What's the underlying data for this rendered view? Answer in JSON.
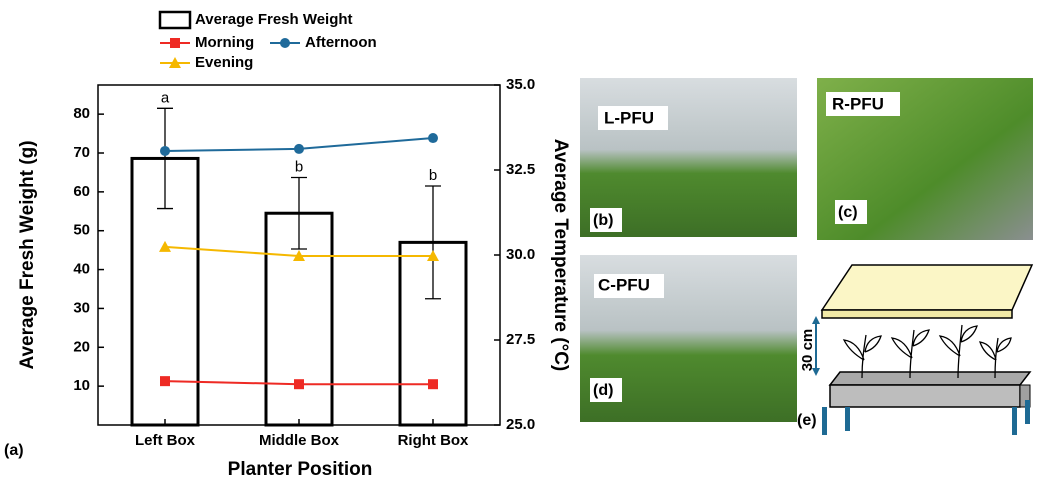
{
  "chart_data": {
    "type": "bar",
    "x_label": "Planter Position",
    "y_label": "Average Fresh Weight (g)",
    "y2_label": "Average Temperature (°C)",
    "panel_label": "(a)",
    "categories": [
      "Left Box",
      "Middle Box",
      "Right Box"
    ],
    "series": [
      {
        "name": "Average Fresh Weight",
        "type": "bar",
        "color": "#000000",
        "values": [
          68.6,
          54.5,
          47.0
        ],
        "errors": [
          12.9,
          9.2,
          14.5
        ],
        "annotations": [
          "a",
          "b",
          "b"
        ]
      },
      {
        "name": "Morning",
        "type": "line",
        "marker": "square",
        "color": "#ee2a24",
        "axis": "y2",
        "values": [
          26.29,
          26.2,
          26.2
        ]
      },
      {
        "name": "Afternoon",
        "type": "line",
        "marker": "circle",
        "color": "#1f6a9a",
        "axis": "y2",
        "values": [
          33.06,
          33.12,
          33.44
        ]
      },
      {
        "name": "Evening",
        "type": "line",
        "marker": "triangle",
        "color": "#f5b800",
        "axis": "y2",
        "values": [
          30.24,
          29.97,
          29.97
        ]
      }
    ],
    "ylim": [
      0,
      87.5
    ],
    "yticks": [
      10,
      20,
      30,
      40,
      50,
      60,
      70,
      80
    ],
    "y2lim": [
      25,
      35
    ],
    "y2ticks": [
      {
        "value": 25,
        "label": "25.0"
      },
      {
        "value": 27.5,
        "label": "27.5"
      },
      {
        "value": 30,
        "label": "30.0"
      },
      {
        "value": 32.5,
        "label": "32.5"
      },
      {
        "value": 35,
        "label": "35.0"
      }
    ]
  },
  "panels": [
    {
      "label": "(b)",
      "title": "L-PFU"
    },
    {
      "label": "(c)",
      "title": "R-PFU"
    },
    {
      "label": "(d)",
      "title": "C-PFU"
    },
    {
      "label": "(e)",
      "dimension": "30 cm"
    }
  ]
}
